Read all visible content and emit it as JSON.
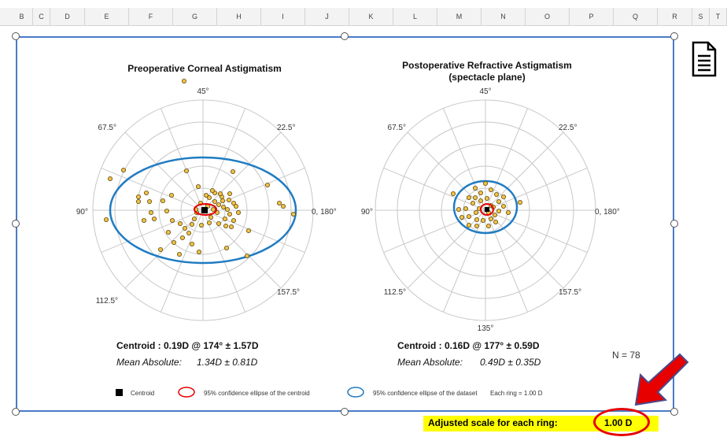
{
  "column_headers": [
    "B",
    "C",
    "D",
    "E",
    "F",
    "G",
    "H",
    "I",
    "J",
    "K",
    "L",
    "M",
    "N",
    "O",
    "P",
    "Q",
    "R",
    "S",
    "T"
  ],
  "left_chart": {
    "title": "Preoperative Corneal Astigmatism",
    "angle_labels": {
      "a45": "45°",
      "a67": "67.5°",
      "a22": "22.5°",
      "a90": "90°",
      "a0": "0, 180°",
      "a112": "112.5°",
      "a157": "157.5°"
    },
    "centroid": "Centroid : 0.19D @ 174° ± 1.57D",
    "mean_absolute_label": "Mean Absolute:",
    "mean_absolute_value": "1.34D ± 0.81D"
  },
  "right_chart": {
    "title_line1": "Postoperative Refractive Astigmatism",
    "title_line2": "(spectacle plane)",
    "angle_labels": {
      "a45": "45°",
      "a67": "67.5°",
      "a22": "22.5°",
      "a90": "90°",
      "a0": "0, 180°",
      "a112": "112.5°",
      "a157": "157.5°",
      "a135": "135°"
    },
    "centroid": "Centroid : 0.16D @ 177° ± 0.59D",
    "mean_absolute_label": "Mean Absolute:",
    "mean_absolute_value": "0.49D ± 0.35D"
  },
  "n_label": "N = 78",
  "legend": {
    "centroid": "Centroid",
    "ci_centroid": "95% confidence ellipse of  the centroid",
    "ci_dataset": "95% confidence ellipse of the dataset",
    "ring": "Each ring =   1.00  D"
  },
  "scale": {
    "label": "Adjusted scale for each ring:",
    "value": "1.00 D"
  },
  "colors": {
    "frame": "#4a7bc8",
    "ellipse_dataset": "#1f7bc2",
    "ellipse_centroid": "#e60000",
    "point_fill": "#f3c244",
    "highlight": "#ffff00",
    "arrow": "#e60000"
  },
  "icons": [
    "document-icon",
    "arrow-icon"
  ]
}
